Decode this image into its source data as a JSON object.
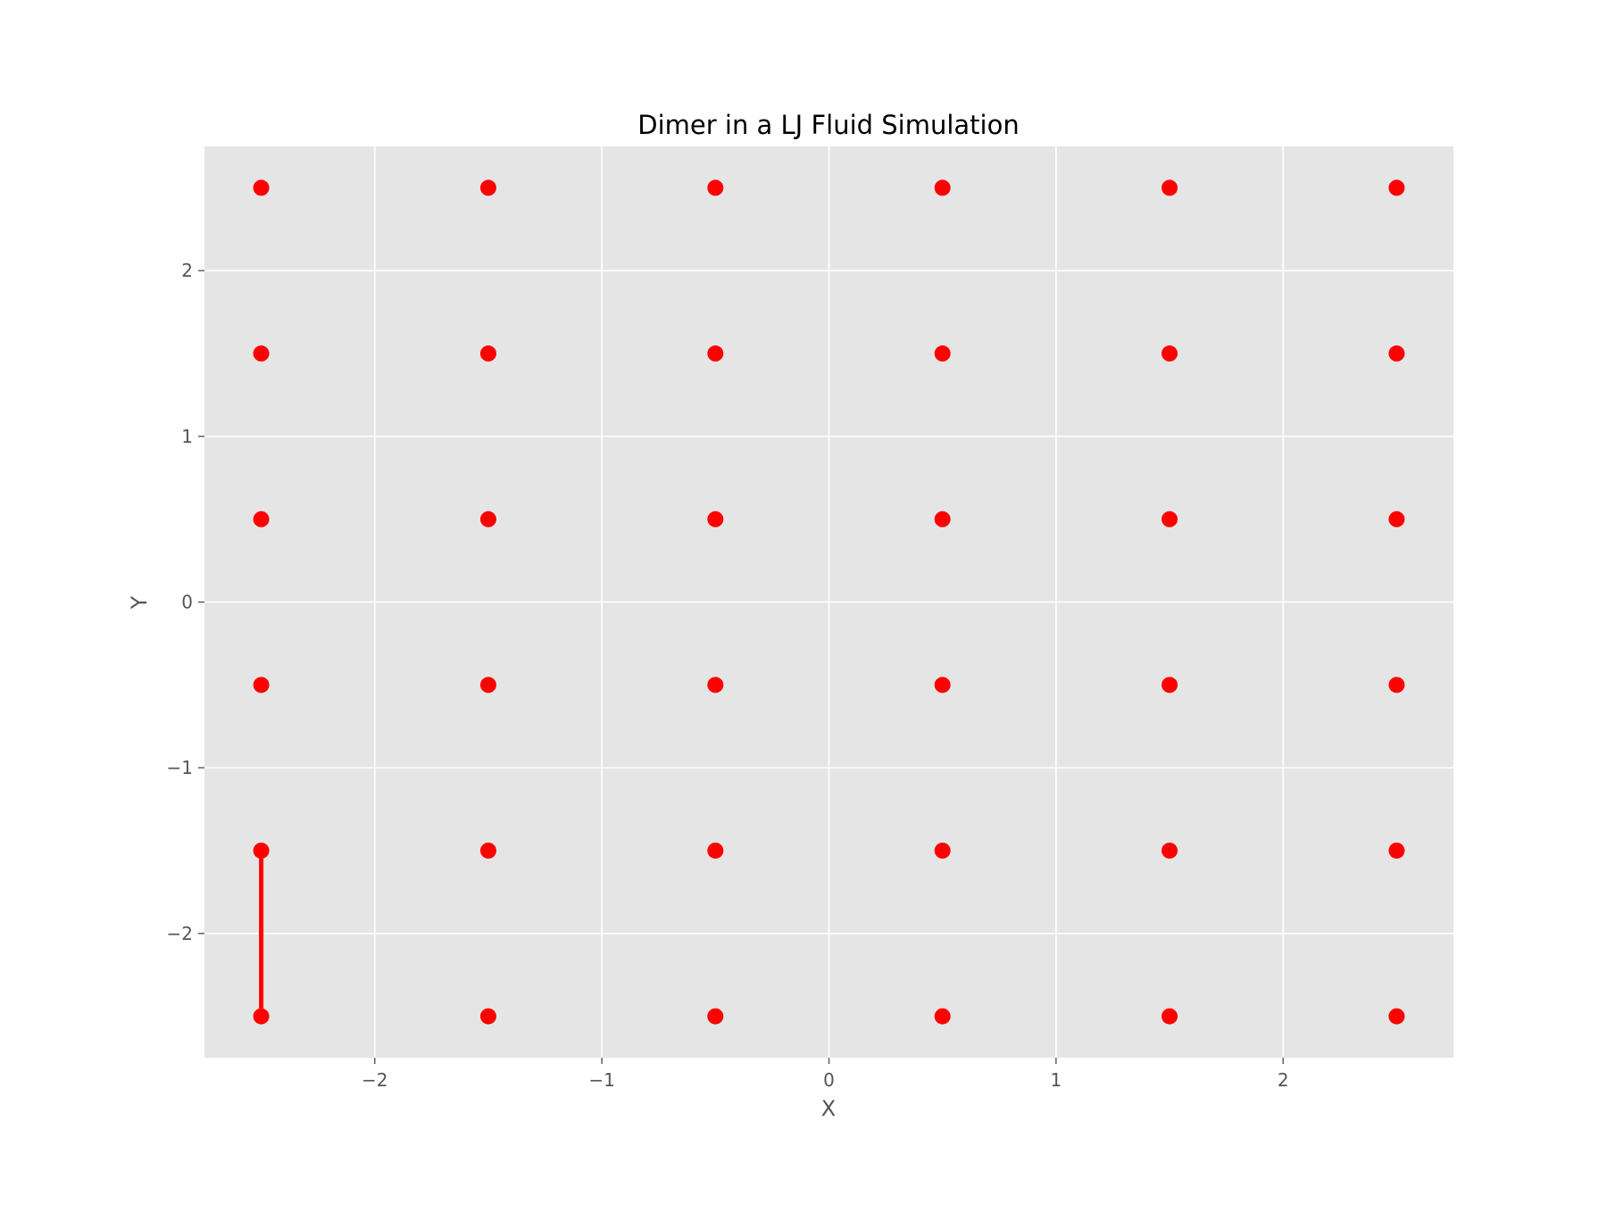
{
  "chart_data": {
    "type": "scatter",
    "title": "Dimer in a LJ Fluid Simulation",
    "xlabel": "X",
    "ylabel": "Y",
    "xlim": [
      -2.75,
      2.75
    ],
    "ylim": [
      -2.75,
      2.75
    ],
    "grid": true,
    "x_ticks": [
      -2,
      -1,
      0,
      1,
      2
    ],
    "y_ticks": [
      -2,
      -1,
      0,
      1,
      2
    ],
    "x_tick_labels": [
      "−2",
      "−1",
      "0",
      "1",
      "2"
    ],
    "y_tick_labels": [
      "−2",
      "−1",
      "0",
      "1",
      "2"
    ],
    "colors": {
      "points": "#ff0000",
      "dimer_bond": "#ff0000",
      "plot_background": "#e5e5e5",
      "grid": "#ffffff"
    },
    "points": {
      "x": [
        -2.5,
        -1.5,
        -0.5,
        0.5,
        1.5,
        2.5,
        -2.5,
        -1.5,
        -0.5,
        0.5,
        1.5,
        2.5,
        -2.5,
        -1.5,
        -0.5,
        0.5,
        1.5,
        2.5,
        -2.5,
        -1.5,
        -0.5,
        0.5,
        1.5,
        2.5,
        -2.5,
        -1.5,
        -0.5,
        0.5,
        1.5,
        2.5,
        -2.5,
        -1.5,
        -0.5,
        0.5,
        1.5,
        2.5
      ],
      "y": [
        2.5,
        2.5,
        2.5,
        2.5,
        2.5,
        2.5,
        1.5,
        1.5,
        1.5,
        1.5,
        1.5,
        1.5,
        0.5,
        0.5,
        0.5,
        0.5,
        0.5,
        0.5,
        -0.5,
        -0.5,
        -0.5,
        -0.5,
        -0.5,
        -0.5,
        -1.5,
        -1.5,
        -1.5,
        -1.5,
        -1.5,
        -1.5,
        -2.5,
        -2.5,
        -2.5,
        -2.5,
        -2.5,
        -2.5
      ]
    },
    "dimer_bond": {
      "x": [
        -2.5,
        -2.5
      ],
      "y": [
        -1.5,
        -2.5
      ]
    }
  }
}
